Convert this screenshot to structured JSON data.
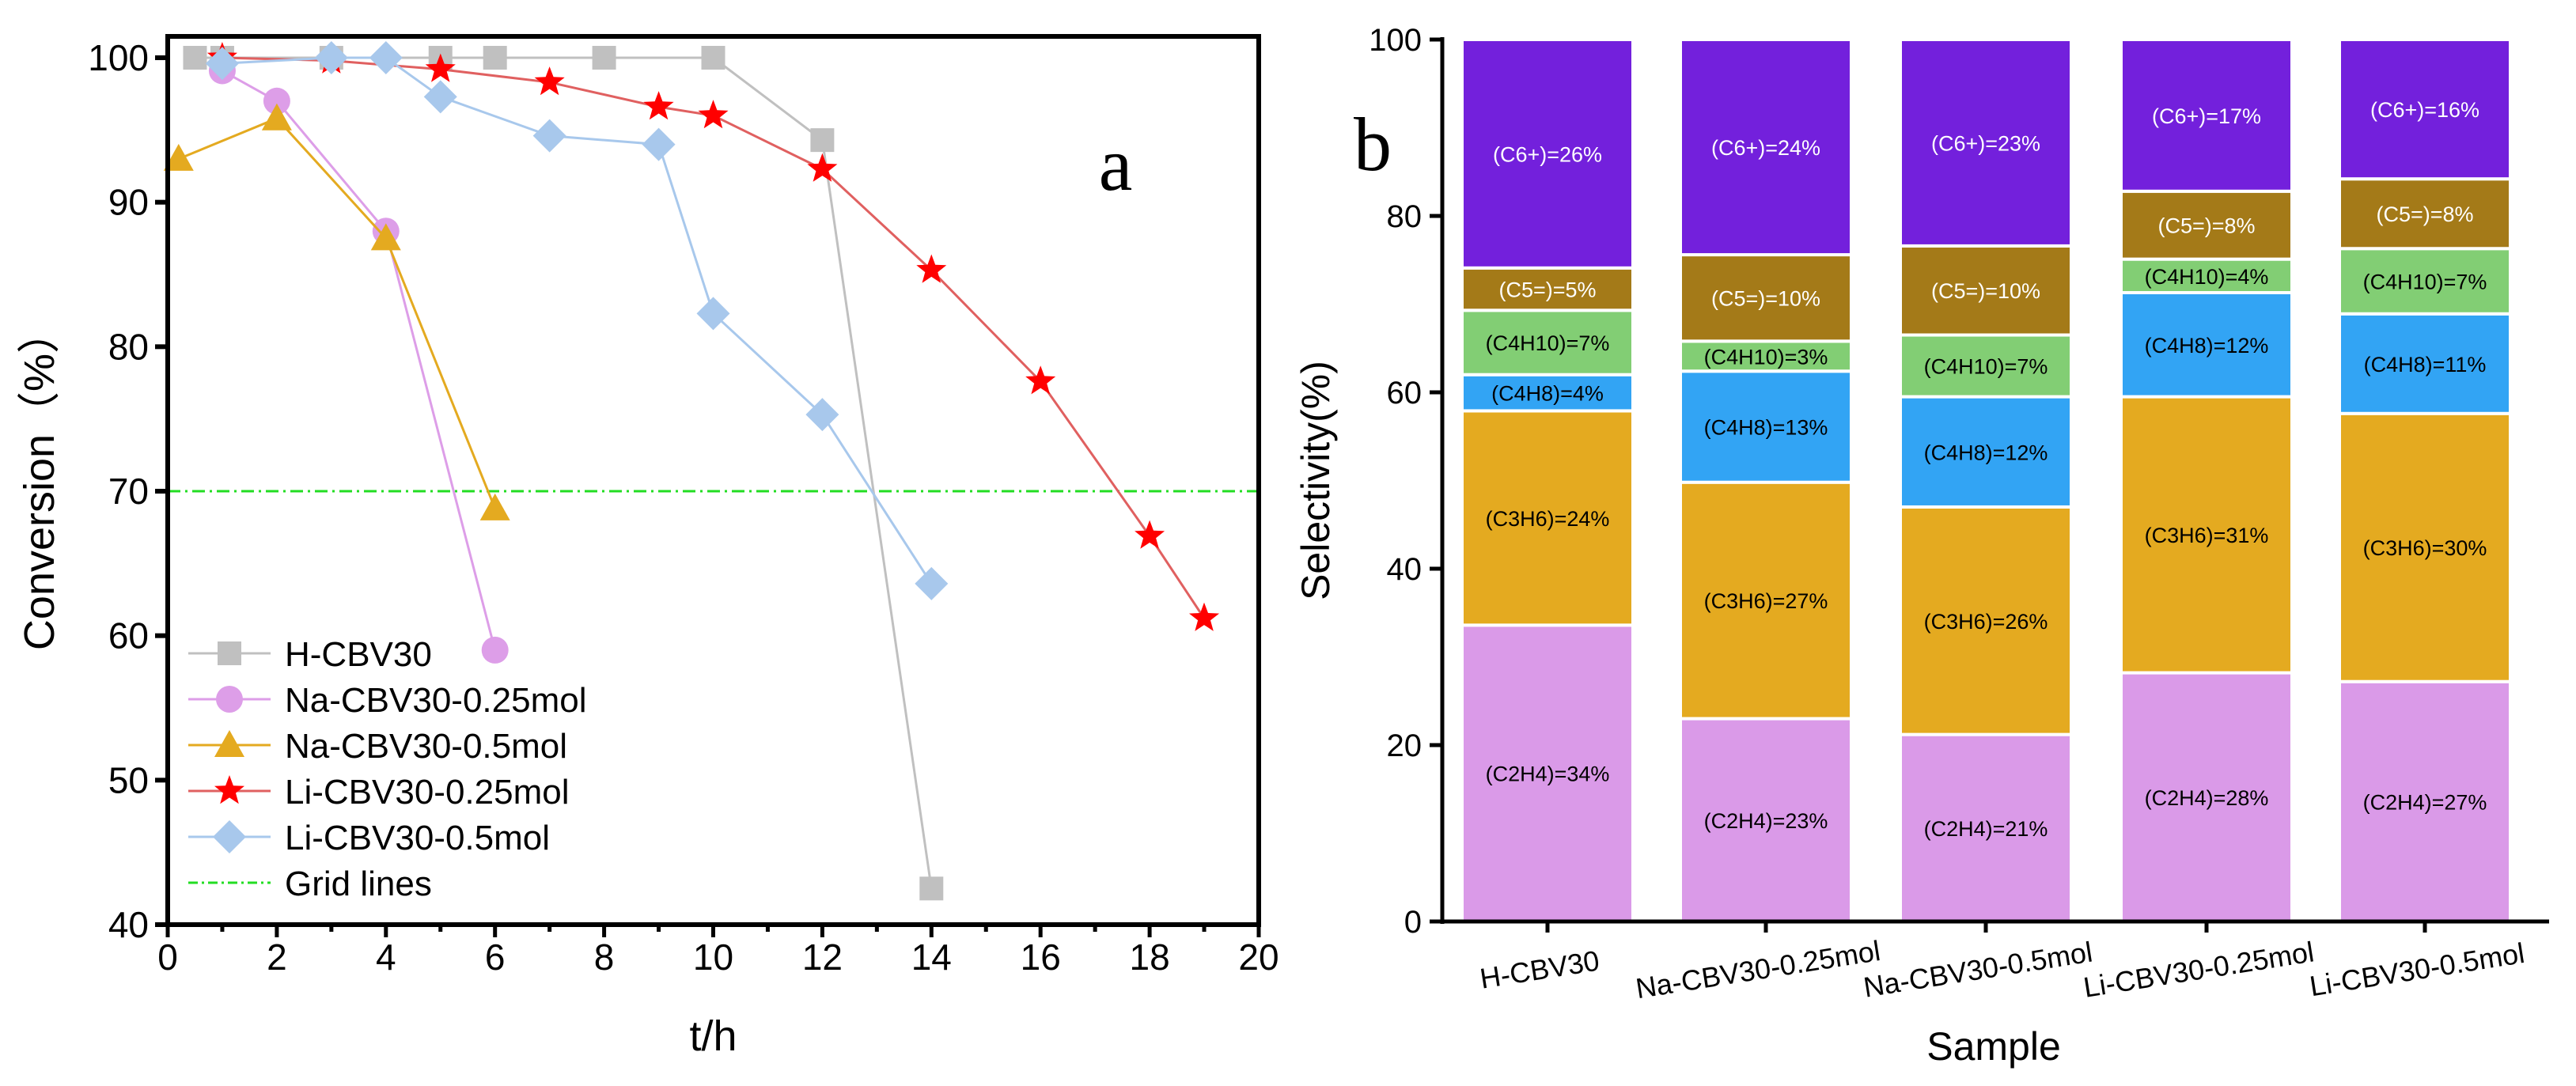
{
  "chart_data": [
    {
      "type": "line",
      "panel_label": "a",
      "xlabel": "t/h",
      "ylabel": "Conversion（%）",
      "xlim": [
        0,
        20
      ],
      "ylim": [
        40,
        100
      ],
      "xticks": [
        0,
        2,
        4,
        6,
        8,
        10,
        12,
        14,
        16,
        18,
        20
      ],
      "yticks": [
        40,
        50,
        60,
        70,
        80,
        90,
        100
      ],
      "grid": false,
      "legend_position": "bottom-left",
      "reference_line": {
        "name": "Grid lines",
        "y": 70,
        "color": "#22dd22",
        "style": "dash-dot"
      },
      "series": [
        {
          "name": "H-CBV30",
          "marker": "square",
          "color": "#c0c0c0",
          "points": [
            [
              0.5,
              100
            ],
            [
              1,
              100
            ],
            [
              3,
              100
            ],
            [
              5,
              100
            ],
            [
              6,
              100
            ],
            [
              8,
              100
            ],
            [
              10,
              100
            ],
            [
              12,
              94.3
            ],
            [
              14,
              42.5
            ]
          ]
        },
        {
          "name": "Na-CBV30-0.25mol",
          "marker": "circle",
          "color": "#dd9ee8",
          "points": [
            [
              1,
              99.1
            ],
            [
              2,
              97
            ],
            [
              4,
              88
            ],
            [
              6,
              59
            ]
          ]
        },
        {
          "name": "Na-CBV30-0.5mol",
          "marker": "triangle",
          "color": "#e4aa20",
          "points": [
            [
              0.2,
              93
            ],
            [
              2,
              95.8
            ],
            [
              4,
              87.5
            ],
            [
              6,
              68.8
            ]
          ]
        },
        {
          "name": "Li-CBV30-0.25mol",
          "marker": "star",
          "color": "#ff0000",
          "line_color": "#e06060",
          "points": [
            [
              1,
              100
            ],
            [
              3,
              99.8
            ],
            [
              5,
              99.2
            ],
            [
              7,
              98.3
            ],
            [
              9,
              96.6
            ],
            [
              10,
              96
            ],
            [
              12,
              92.3
            ],
            [
              14,
              85.3
            ],
            [
              16,
              77.6
            ],
            [
              18,
              66.9
            ],
            [
              19,
              61.2
            ]
          ]
        },
        {
          "name": "Li-CBV30-0.5mol",
          "marker": "diamond",
          "color": "#a8c8ec",
          "points": [
            [
              1,
              99.6
            ],
            [
              3,
              100
            ],
            [
              4,
              100
            ],
            [
              5,
              97.3
            ],
            [
              7,
              94.6
            ],
            [
              9,
              94
            ],
            [
              10,
              82.3
            ],
            [
              12,
              75.3
            ],
            [
              14,
              63.6
            ]
          ]
        }
      ]
    },
    {
      "type": "bar",
      "stacked": true,
      "panel_label": "b",
      "xlabel": "Sample",
      "ylabel": "Selectivity(%)",
      "ylim": [
        0,
        100
      ],
      "yticks": [
        0,
        20,
        40,
        60,
        80,
        100
      ],
      "categories": [
        "H-CBV30",
        "Na-CBV30-0.25mol",
        "Na-CBV30-0.5mol",
        "Li-CBV30-0.25mol",
        "Li-CBV30-0.5mol"
      ],
      "series": [
        {
          "name": "C2H4",
          "color": "#da9ae8",
          "text_color": "#000000",
          "values": [
            33.6,
            23.0,
            21.2,
            28.2,
            27.2
          ],
          "labels": [
            "(C2H4)=34%",
            "(C2H4)=23%",
            "(C2H4)=21%",
            "(C2H4)=28%",
            "(C2H4)=27%"
          ]
        },
        {
          "name": "C3H6",
          "color": "#e4aa20",
          "text_color": "#000000",
          "values": [
            24.3,
            26.8,
            25.8,
            31.3,
            30.4
          ],
          "labels": [
            "(C3H6)=24%",
            "(C3H6)=27%",
            "(C3H6)=26%",
            "(C3H6)=31%",
            "(C3H6)=30%"
          ]
        },
        {
          "name": "C4H8",
          "color": "#32a4f4",
          "text_color": "#000000",
          "values": [
            4.1,
            12.6,
            12.5,
            11.8,
            11.3
          ],
          "labels": [
            "(C4H8)=4%",
            "(C4H8)=13%",
            "(C4H8)=12%",
            "(C4H8)=12%",
            "(C4H8)=11%"
          ]
        },
        {
          "name": "C4H10",
          "color": "#82ce74",
          "text_color": "#000000",
          "values": [
            7.3,
            3.4,
            7.0,
            3.8,
            7.4
          ],
          "labels": [
            "(C4H10)=7%",
            "(C4H10)=3%",
            "(C4H10)=7%",
            "(C4H10)=4%",
            "(C4H10)=7%"
          ]
        },
        {
          "name": "C5=",
          "color": "#a47a18",
          "text_color": "#ffffff",
          "values": [
            4.8,
            9.8,
            10.1,
            7.7,
            7.9
          ],
          "labels": [
            "(C5=)=5%",
            "(C5=)=10%",
            "(C5=)=10%",
            "(C5=)=8%",
            "(C5=)=8%"
          ]
        },
        {
          "name": "C6+",
          "color": "#7320dc",
          "text_color": "#ffffff",
          "values": [
            25.9,
            24.4,
            23.4,
            17.2,
            15.8
          ],
          "labels": [
            "(C6+)=26%",
            "(C6+)=24%",
            "(C6+)=23%",
            "(C6+)=17%",
            "(C6+)=16%"
          ]
        }
      ]
    }
  ]
}
